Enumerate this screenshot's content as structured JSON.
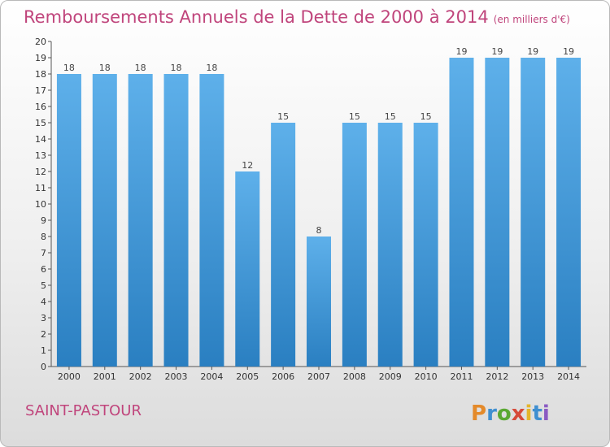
{
  "header": {
    "title": "Remboursements Annuels de la Dette de 2000 à 2014",
    "subtitle": "(en milliers d'€)"
  },
  "footer": {
    "commune": "SAINT-PASTOUR",
    "logo_text": "Proxiti"
  },
  "colors": {
    "bar_top": "#5eb0ea",
    "bar_bottom": "#2a7fc1",
    "title": "#c0457c"
  },
  "chart_data": {
    "type": "bar",
    "categories": [
      "2000",
      "2001",
      "2002",
      "2003",
      "2004",
      "2005",
      "2006",
      "2007",
      "2008",
      "2009",
      "2010",
      "2011",
      "2012",
      "2013",
      "2014"
    ],
    "values": [
      18,
      18,
      18,
      18,
      18,
      12,
      15,
      8,
      15,
      15,
      15,
      19,
      19,
      19,
      19
    ],
    "title": "Remboursements Annuels de la Dette de 2000 à 2014",
    "xlabel": "",
    "ylabel": "",
    "ylim": [
      0,
      20
    ],
    "yticks": [
      0,
      1,
      2,
      3,
      4,
      5,
      6,
      7,
      8,
      9,
      10,
      11,
      12,
      13,
      14,
      15,
      16,
      17,
      18,
      19,
      20
    ],
    "grid": false,
    "legend": "none"
  }
}
